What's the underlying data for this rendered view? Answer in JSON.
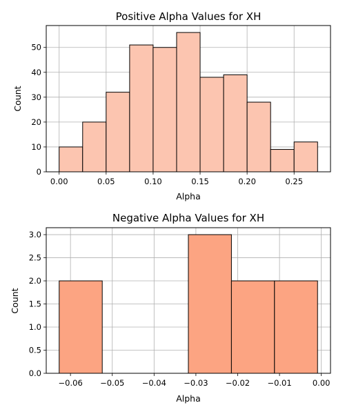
{
  "chart_data": [
    {
      "type": "bar",
      "title": "Positive Alpha Values for XH",
      "xlabel": "Alpha",
      "ylabel": "Count",
      "bin_edges": [
        0.0,
        0.025,
        0.05,
        0.075,
        0.1,
        0.125,
        0.15,
        0.175,
        0.2,
        0.225,
        0.25,
        0.275
      ],
      "values": [
        10,
        20,
        32,
        51,
        50,
        56,
        38,
        39,
        28,
        9,
        12
      ],
      "xlim": [
        -0.01375,
        0.28875
      ],
      "ylim": [
        0,
        58.8
      ],
      "xticks": [
        0.0,
        0.05,
        0.1,
        0.15,
        0.2,
        0.25
      ],
      "xtick_labels": [
        "0.00",
        "0.05",
        "0.10",
        "0.15",
        "0.20",
        "0.25"
      ],
      "yticks": [
        0,
        10,
        20,
        30,
        40,
        50
      ],
      "ytick_labels": [
        "0",
        "10",
        "20",
        "30",
        "40",
        "50"
      ],
      "grid": true,
      "bar_color": "#fcc5b0",
      "edge_color": "#000000"
    },
    {
      "type": "bar",
      "title": "Negative Alpha Values for XH",
      "xlabel": "Alpha",
      "ylabel": "Count",
      "bin_edges": [
        -0.0627,
        -0.0524,
        -0.0421,
        -0.0318,
        -0.0215,
        -0.0112,
        -0.0009
      ],
      "values": [
        2,
        0,
        0,
        3,
        2,
        2
      ],
      "xlim": [
        -0.0658,
        0.0022
      ],
      "ylim": [
        0,
        3.15
      ],
      "xticks": [
        -0.06,
        -0.05,
        -0.04,
        -0.03,
        -0.02,
        -0.01,
        0.0
      ],
      "xtick_labels": [
        "−0.06",
        "−0.05",
        "−0.04",
        "−0.03",
        "−0.02",
        "−0.01",
        "0.00"
      ],
      "yticks": [
        0,
        0.5,
        1,
        1.5,
        2,
        2.5,
        3
      ],
      "ytick_labels": [
        "0.0",
        "0.5",
        "1.0",
        "1.5",
        "2.0",
        "2.5",
        "3.0"
      ],
      "grid": true,
      "bar_color": "#fca482",
      "edge_color": "#000000"
    }
  ]
}
